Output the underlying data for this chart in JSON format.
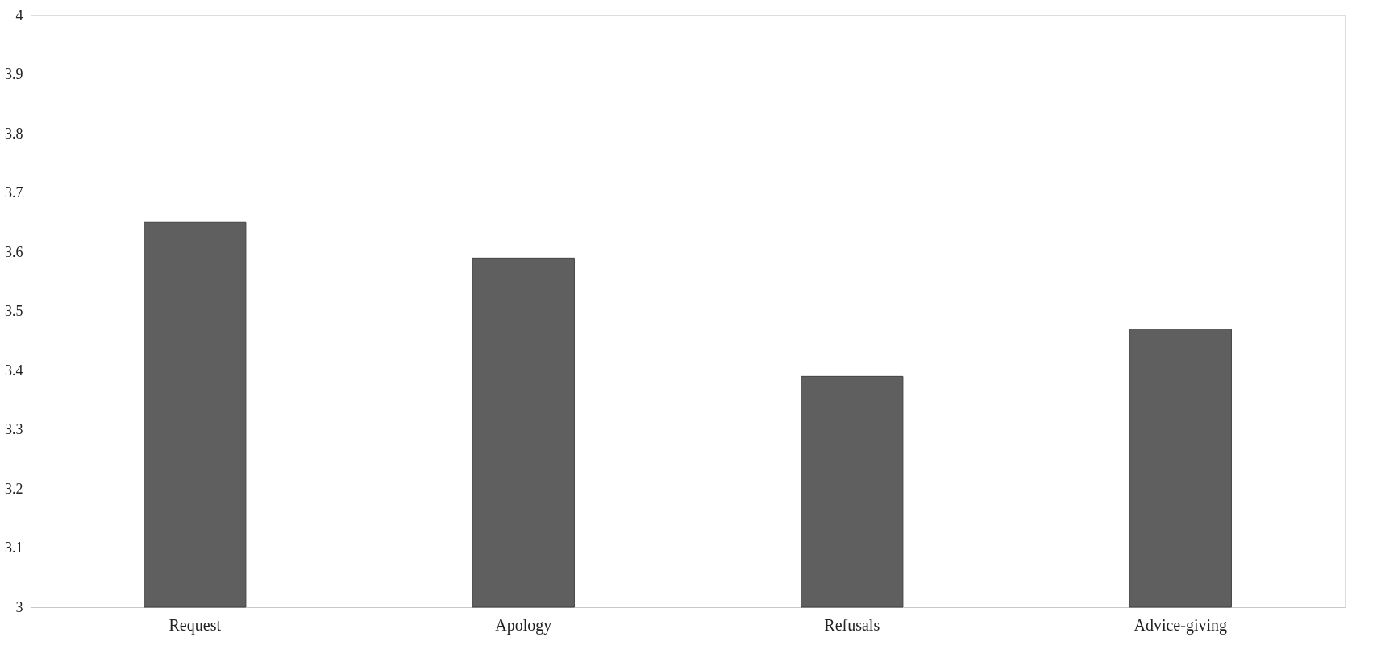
{
  "chart_data": {
    "type": "bar",
    "categories": [
      "Request",
      "Apology",
      "Refusals",
      "Advice-giving"
    ],
    "values": [
      3.65,
      3.59,
      3.39,
      3.47
    ],
    "color": "#5f5f5f",
    "ylim": [
      3,
      4
    ],
    "yticks": [
      3,
      3.1,
      3.2,
      3.3,
      3.4,
      3.5,
      3.6,
      3.7,
      3.8,
      3.9,
      4
    ],
    "grid": false
  }
}
